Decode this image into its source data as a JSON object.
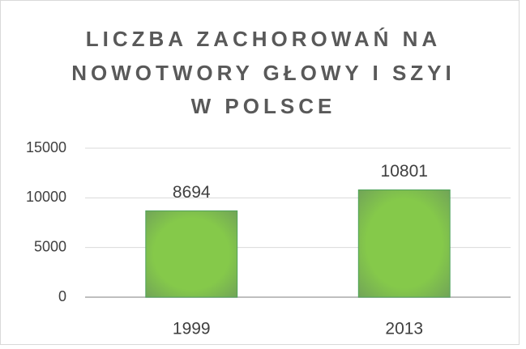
{
  "chart_data": {
    "type": "bar",
    "title": [
      "LICZBA ZACHOROWAŃ NA",
      "NOWOTWORY GŁOWY I SZYI",
      "W POLSCE"
    ],
    "categories": [
      "1999",
      "2013"
    ],
    "values": [
      8694,
      10801
    ],
    "color": "#7dc242",
    "ylim": [
      0,
      15000
    ],
    "yticks": [
      0,
      5000,
      10000,
      15000
    ],
    "grid": true
  }
}
